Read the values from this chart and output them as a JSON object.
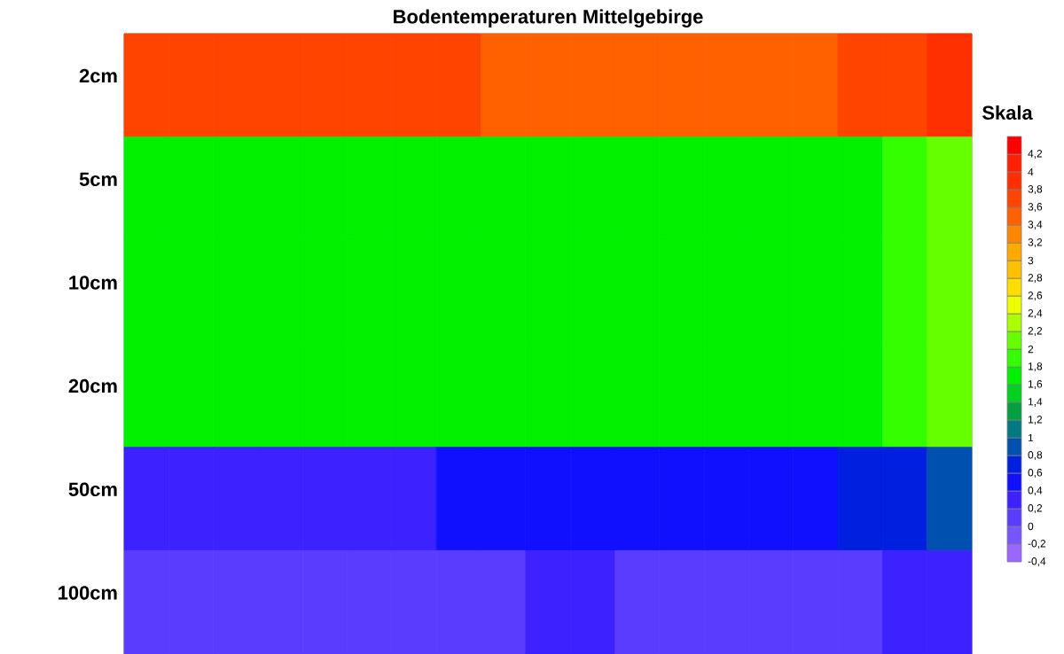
{
  "chart_data": {
    "type": "heatmap",
    "title": "Bodentemperaturen Mittelgebirge",
    "clabel": "Skala",
    "categories": [
      null,
      null,
      null,
      null,
      null,
      null,
      null,
      null,
      null,
      null,
      null,
      null,
      null,
      null,
      null,
      null,
      null,
      null,
      null
    ],
    "y_categories": [
      "2cm",
      "5cm",
      "10cm",
      "20cm",
      "50cm",
      "100cm"
    ],
    "cells": [
      [
        3.6,
        3.6,
        3.6,
        3.6,
        3.6,
        3.6,
        3.6,
        3.6,
        3.4,
        3.4,
        3.4,
        3.4,
        3.4,
        3.4,
        3.4,
        3.4,
        3.6,
        3.6,
        3.8
      ],
      [
        1.6,
        1.6,
        1.6,
        1.6,
        1.6,
        1.6,
        1.6,
        1.6,
        1.6,
        1.6,
        1.6,
        1.6,
        1.6,
        1.6,
        1.6,
        1.6,
        1.6,
        1.8,
        2.0
      ],
      [
        1.6,
        1.6,
        1.6,
        1.6,
        1.6,
        1.6,
        1.6,
        1.6,
        1.6,
        1.6,
        1.6,
        1.6,
        1.6,
        1.6,
        1.6,
        1.6,
        1.6,
        1.8,
        2.0
      ],
      [
        1.6,
        1.6,
        1.6,
        1.6,
        1.6,
        1.6,
        1.6,
        1.6,
        1.6,
        1.6,
        1.6,
        1.6,
        1.6,
        1.6,
        1.6,
        1.6,
        1.6,
        1.8,
        2.0
      ],
      [
        0.2,
        0.2,
        0.2,
        0.2,
        0.2,
        0.2,
        0.2,
        0.4,
        0.4,
        0.4,
        0.4,
        0.4,
        0.4,
        0.4,
        0.4,
        0.4,
        0.6,
        0.6,
        0.8
      ],
      [
        0,
        0,
        0,
        0,
        0,
        0,
        0,
        0,
        0,
        0.2,
        0.2,
        0,
        0,
        0,
        0,
        0,
        0,
        0.2,
        0.2
      ]
    ],
    "clim": [
      -0.4,
      4.4
    ],
    "cticks": [
      {
        "value": -0.4,
        "label": "-0,4"
      },
      {
        "value": -0.2,
        "label": "-0,2"
      },
      0,
      {
        "value": 0.2,
        "label": "0,2"
      },
      {
        "value": 0.4,
        "label": "0,4"
      },
      {
        "value": 0.6,
        "label": "0,6"
      },
      {
        "value": 0.8,
        "label": "0,8"
      },
      1,
      {
        "value": 1.2,
        "label": "1,2"
      },
      {
        "value": 1.4,
        "label": "1,4"
      },
      {
        "value": 1.6,
        "label": "1,6"
      },
      {
        "value": 1.8,
        "label": "1,8"
      },
      2,
      {
        "value": 2.2,
        "label": "2,2"
      },
      {
        "value": 2.4,
        "label": "2,4"
      },
      {
        "value": 2.6,
        "label": "2,6"
      },
      {
        "value": 2.8,
        "label": "2,8"
      },
      3,
      {
        "value": 3.2,
        "label": "3,2"
      },
      {
        "value": 3.4,
        "label": "3,4"
      },
      {
        "value": 3.6,
        "label": "3,6"
      },
      {
        "value": 3.8,
        "label": "3,8"
      },
      4,
      {
        "value": 4.2,
        "label": "4,2"
      }
    ]
  }
}
